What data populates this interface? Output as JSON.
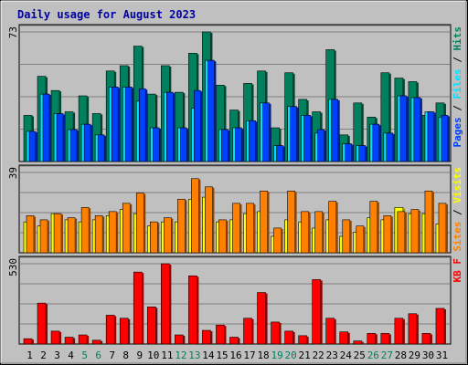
{
  "chart_data": {
    "type": "bar",
    "title": "Daily usage for August 2023",
    "categories": [
      "1",
      "2",
      "3",
      "4",
      "5",
      "6",
      "7",
      "8",
      "9",
      "10",
      "11",
      "12",
      "13",
      "14",
      "15",
      "16",
      "17",
      "18",
      "19",
      "20",
      "21",
      "22",
      "23",
      "24",
      "25",
      "26",
      "27",
      "28",
      "29",
      "30",
      "31"
    ],
    "weekend_days": [
      "5",
      "6",
      "12",
      "13",
      "19",
      "20",
      "26",
      "27"
    ],
    "panels": [
      {
        "id": "top",
        "ymax_label": "73",
        "ylim": [
          0,
          73
        ],
        "legend_right": [
          "Pages",
          "Files",
          "Hits"
        ],
        "series": [
          {
            "name": "Hits",
            "color": "#00805c",
            "values": [
              26,
              48,
              40,
              28,
              37,
              27,
              51,
              54,
              65,
              38,
              54,
              39,
              61,
              73,
              43,
              29,
              44,
              51,
              19,
              50,
              35,
              28,
              63,
              15,
              33,
              25,
              50,
              47,
              45,
              26,
              33
            ]
          },
          {
            "name": "Files",
            "color": "#00e0ff",
            "values": [
              17,
              38,
              27,
              18,
              21,
              15,
              42,
              42,
              34,
              19,
              39,
              19,
              30,
              57,
              18,
              19,
              23,
              33,
              9,
              31,
              26,
              16,
              35,
              10,
              9,
              21,
              16,
              37,
              36,
              28,
              25
            ]
          },
          {
            "name": "Pages",
            "color": "#0040ff",
            "values": [
              17,
              38,
              27,
              18,
              21,
              15,
              42,
              42,
              41,
              19,
              39,
              19,
              40,
              57,
              18,
              19,
              23,
              33,
              9,
              31,
              26,
              18,
              35,
              10,
              9,
              21,
              16,
              37,
              36,
              28,
              26
            ]
          }
        ]
      },
      {
        "id": "middle",
        "ymax_label": "39",
        "ylim": [
          0,
          39
        ],
        "legend_right": [
          "Sites",
          "Visits"
        ],
        "series": [
          {
            "name": "Visits",
            "color": "#ffff00",
            "values": [
              15,
              13,
              19,
              16,
              15,
              16,
              18,
              21,
              19,
              13,
              15,
              15,
              26,
              27,
              15,
              16,
              19,
              20,
              8,
              16,
              15,
              12,
              16,
              8,
              10,
              17,
              16,
              22,
              19,
              19,
              14
            ]
          },
          {
            "name": "Sites",
            "color": "#ff8000",
            "values": [
              18,
              16,
              19,
              17,
              22,
              18,
              20,
              24,
              29,
              15,
              17,
              26,
              36,
              32,
              16,
              24,
              24,
              30,
              12,
              30,
              20,
              20,
              25,
              16,
              13,
              25,
              18,
              20,
              21,
              30,
              24
            ]
          }
        ]
      },
      {
        "id": "bottom",
        "ymax_label": "530",
        "ylim": [
          0,
          530
        ],
        "legend_right": [
          "KB F"
        ],
        "series": [
          {
            "name": "KB F",
            "color": "#ff0000",
            "values": [
              35,
              270,
              85,
              45,
              60,
              25,
              190,
              170,
              475,
              245,
              530,
              60,
              450,
              90,
              125,
              45,
              170,
              340,
              145,
              85,
              55,
              425,
              170,
              80,
              20,
              70,
              70,
              170,
              200,
              70,
              235
            ]
          }
        ]
      }
    ]
  }
}
